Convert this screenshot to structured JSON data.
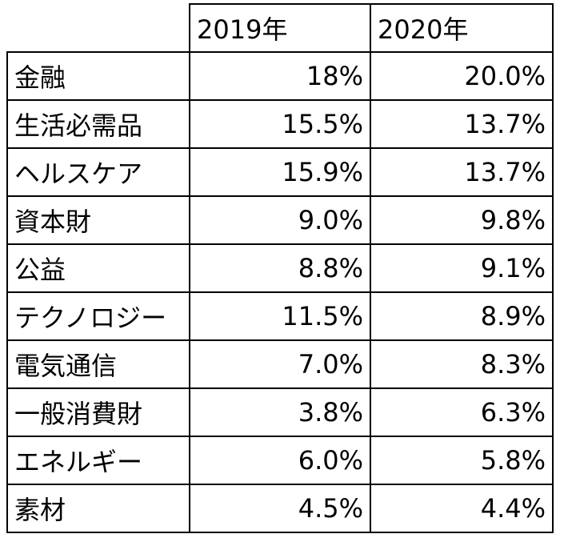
{
  "chart_data": {
    "type": "table",
    "columns": [
      "2019年",
      "2020年"
    ],
    "rows": [
      {
        "label": "金融",
        "values": [
          "18%",
          "20.0%"
        ]
      },
      {
        "label": "生活必需品",
        "values": [
          "15.5%",
          "13.7%"
        ]
      },
      {
        "label": "ヘルスケア",
        "values": [
          "15.9%",
          "13.7%"
        ]
      },
      {
        "label": "資本財",
        "values": [
          "9.0%",
          "9.8%"
        ]
      },
      {
        "label": "公益",
        "values": [
          "8.8%",
          "9.1%"
        ]
      },
      {
        "label": "テクノロジー",
        "values": [
          "11.5%",
          "8.9%"
        ]
      },
      {
        "label": "電気通信",
        "values": [
          "7.0%",
          "8.3%"
        ]
      },
      {
        "label": "一般消費財",
        "values": [
          "3.8%",
          "6.3%"
        ]
      },
      {
        "label": "エネルギー",
        "values": [
          "6.0%",
          "5.8%"
        ]
      },
      {
        "label": "素材",
        "values": [
          "4.5%",
          "4.4%"
        ]
      }
    ]
  }
}
